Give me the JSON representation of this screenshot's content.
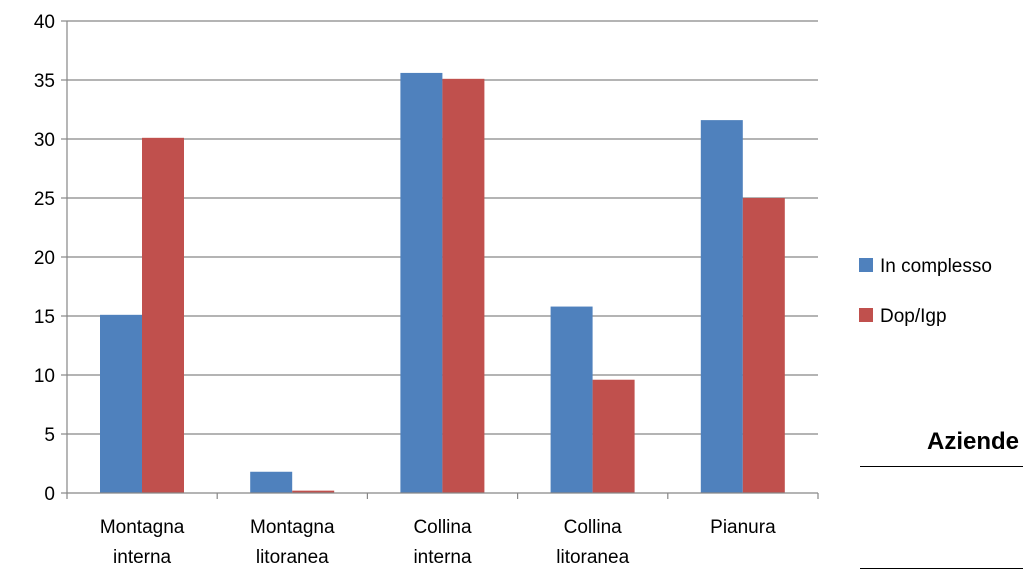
{
  "chart_data": {
    "type": "bar",
    "categories": [
      [
        "Montagna",
        "interna"
      ],
      [
        "Montagna",
        "litoranea"
      ],
      [
        "Collina",
        "interna"
      ],
      [
        "Collina",
        "litoranea"
      ],
      [
        "Pianura"
      ]
    ],
    "series": [
      {
        "name": "In complesso",
        "color": "#4F81BD",
        "values": [
          15.1,
          1.8,
          35.6,
          15.8,
          31.6
        ]
      },
      {
        "name": "Dop/Igp",
        "color": "#C0504D",
        "values": [
          30.1,
          0.2,
          35.1,
          9.6,
          25.0
        ]
      }
    ],
    "y_ticks": [
      0,
      5,
      10,
      15,
      20,
      25,
      30,
      35,
      40
    ],
    "ylim": [
      0,
      40
    ],
    "grid": true,
    "legend_position": "right"
  },
  "side_heading": "Aziende"
}
